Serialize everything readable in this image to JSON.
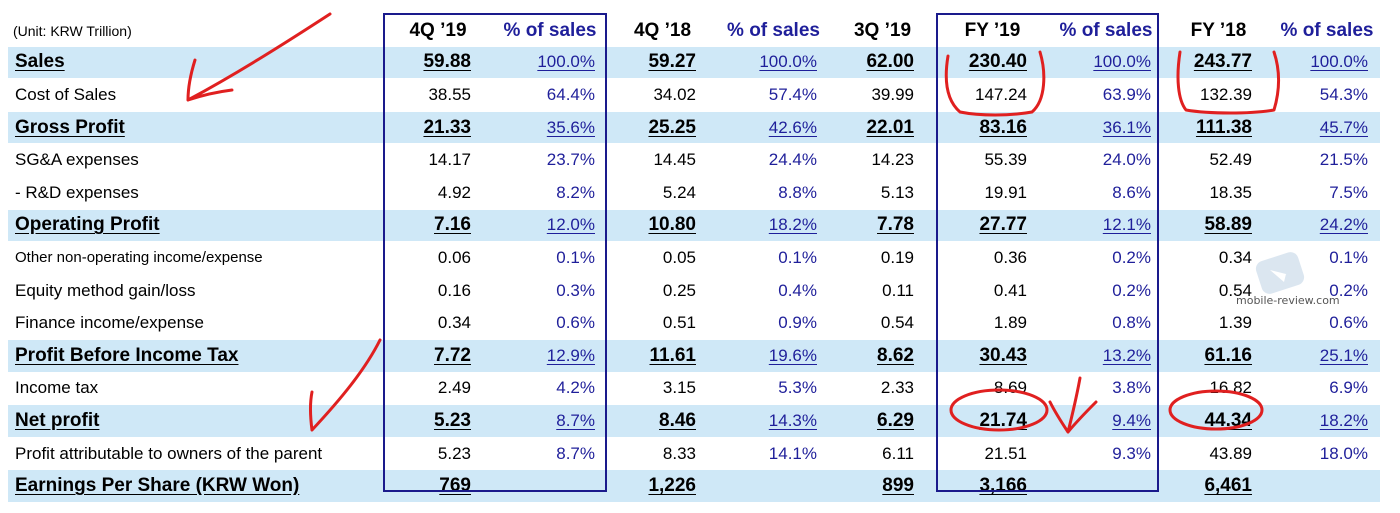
{
  "unit_label": "(Unit: KRW Trillion)",
  "columns": [
    "4Q ’19",
    "% of sales",
    "4Q ’18",
    "% of sales",
    "3Q ’19",
    "FY ’19",
    "% of sales",
    "FY ’18",
    "% of sales"
  ],
  "rows": [
    {
      "label": "Sales",
      "major": true,
      "values": [
        "59.88",
        "100.0%",
        "59.27",
        "100.0%",
        "62.00",
        "230.40",
        "100.0%",
        "243.77",
        "100.0%"
      ]
    },
    {
      "label": "Cost of Sales",
      "major": false,
      "values": [
        "38.55",
        "64.4%",
        "34.02",
        "57.4%",
        "39.99",
        "147.24",
        "63.9%",
        "132.39",
        "54.3%"
      ]
    },
    {
      "label": "Gross Profit",
      "major": true,
      "values": [
        "21.33",
        "35.6%",
        "25.25",
        "42.6%",
        "22.01",
        "83.16",
        "36.1%",
        "111.38",
        "45.7%"
      ]
    },
    {
      "label": "SG&A expenses",
      "major": false,
      "values": [
        "14.17",
        "23.7%",
        "14.45",
        "24.4%",
        "14.23",
        "55.39",
        "24.0%",
        "52.49",
        "21.5%"
      ]
    },
    {
      "label": " - R&D expenses",
      "major": false,
      "values": [
        "4.92",
        "8.2%",
        "5.24",
        "8.8%",
        "5.13",
        "19.91",
        "8.6%",
        "18.35",
        "7.5%"
      ]
    },
    {
      "label": "Operating Profit",
      "major": true,
      "values": [
        "7.16",
        "12.0%",
        "10.80",
        "18.2%",
        "7.78",
        "27.77",
        "12.1%",
        "58.89",
        "24.2%"
      ]
    },
    {
      "label": "Other non-operating income/expense",
      "major": false,
      "small": true,
      "values": [
        "0.06",
        "0.1%",
        "0.05",
        "0.1%",
        "0.19",
        "0.36",
        "0.2%",
        "0.34",
        "0.1%"
      ]
    },
    {
      "label": "Equity method gain/loss",
      "major": false,
      "values": [
        "0.16",
        "0.3%",
        "0.25",
        "0.4%",
        "0.11",
        "0.41",
        "0.2%",
        "0.54",
        "0.2%"
      ]
    },
    {
      "label": "Finance income/expense",
      "major": false,
      "values": [
        "0.34",
        "0.6%",
        "0.51",
        "0.9%",
        "0.54",
        "1.89",
        "0.8%",
        "1.39",
        "0.6%"
      ]
    },
    {
      "label": "Profit Before Income Tax",
      "major": true,
      "values": [
        "7.72",
        "12.9%",
        "11.61",
        "19.6%",
        "8.62",
        "30.43",
        "13.2%",
        "61.16",
        "25.1%"
      ]
    },
    {
      "label": "Income tax",
      "major": false,
      "values": [
        "2.49",
        "4.2%",
        "3.15",
        "5.3%",
        "2.33",
        "8.69",
        "3.8%",
        "16.82",
        "6.9%"
      ]
    },
    {
      "label": "Net profit",
      "major": true,
      "values": [
        "5.23",
        "8.7%",
        "8.46",
        "14.3%",
        "6.29",
        "21.74",
        "9.4%",
        "44.34",
        "18.2%"
      ]
    },
    {
      "label": "Profit attributable to owners of the parent",
      "major": false,
      "values": [
        "5.23",
        "8.7%",
        "8.33",
        "14.1%",
        "6.11",
        "21.51",
        "9.3%",
        "43.89",
        "18.0%"
      ]
    },
    {
      "label": "Earnings Per Share (KRW Won)",
      "major": true,
      "values": [
        "769",
        "",
        "1,226",
        "",
        "899",
        "3,166",
        "",
        "6,461",
        ""
      ]
    }
  ],
  "watermark": {
    "text": "mobile-review.com",
    "icon": "mobile-review-logo-icon"
  },
  "colors": {
    "highlight_row": "#cfe8f7",
    "percent_text": "#1f1f9a",
    "box_border": "#1a1a8c",
    "annotation": "#e02020"
  }
}
